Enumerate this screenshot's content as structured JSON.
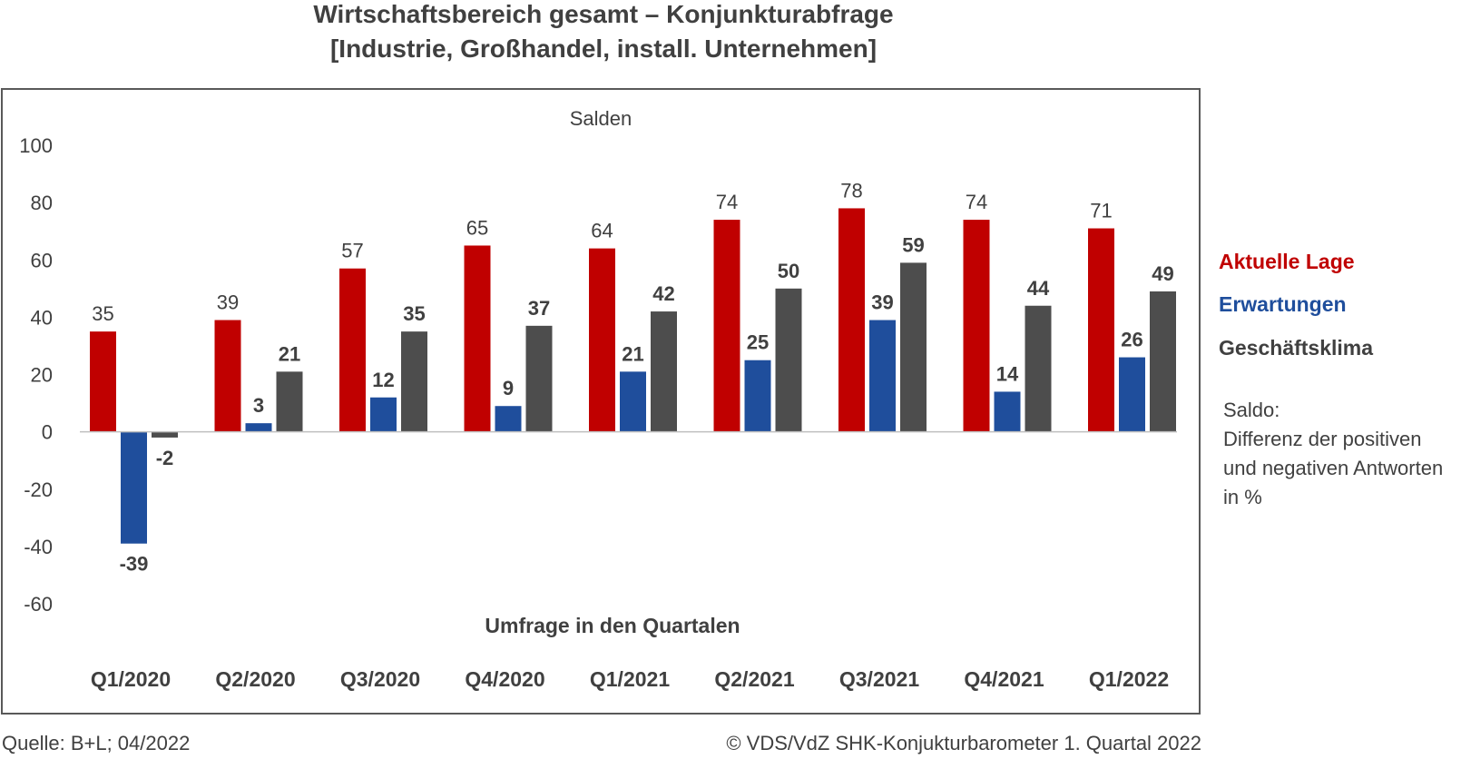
{
  "title_line1": "Wirtschaftsbereich gesamt – Konjunkturabfrage",
  "title_line2": "[Industrie, Großhandel, install. Unternehmen]",
  "legend": {
    "aktuelle_lage": "Aktuelle Lage",
    "erwartungen": "Erwartungen",
    "geschaeftsklima": "Geschäftsklima"
  },
  "note": {
    "title": "Saldo:",
    "line1": "Differenz der positiven",
    "line2": "und negativen Antworten",
    "line3": "in %"
  },
  "footer": {
    "source": "Quelle: B+L; 04/2022",
    "copyright": "© VDS/VdZ SHK-Konjukturbarometer 1. Quartal 2022"
  },
  "colors": {
    "aktuelle_lage": "#c00000",
    "erwartungen": "#1f4e9c",
    "geschaeftsklima": "#4d4d4d",
    "text": "#404040"
  },
  "chart_data": {
    "type": "bar",
    "subtitle": "Salden",
    "xlabel": "Umfrage in den Quartalen",
    "ylabel": "",
    "ylim": [
      -60,
      100
    ],
    "yticks": [
      100,
      80,
      60,
      40,
      20,
      0,
      -20,
      -40,
      -60
    ],
    "grid": false,
    "legend_position": "right",
    "categories": [
      "Q1/2020",
      "Q2/2020",
      "Q3/2020",
      "Q4/2020",
      "Q1/2021",
      "Q2/2021",
      "Q3/2021",
      "Q4/2021",
      "Q1/2022"
    ],
    "series": [
      {
        "name": "Aktuelle Lage",
        "values": [
          35,
          39,
          57,
          65,
          64,
          74,
          78,
          74,
          71
        ]
      },
      {
        "name": "Erwartungen",
        "values": [
          -39,
          3,
          12,
          9,
          21,
          25,
          39,
          14,
          26
        ]
      },
      {
        "name": "Geschäftsklima",
        "values": [
          -2,
          21,
          35,
          37,
          42,
          50,
          59,
          44,
          49
        ]
      }
    ]
  }
}
